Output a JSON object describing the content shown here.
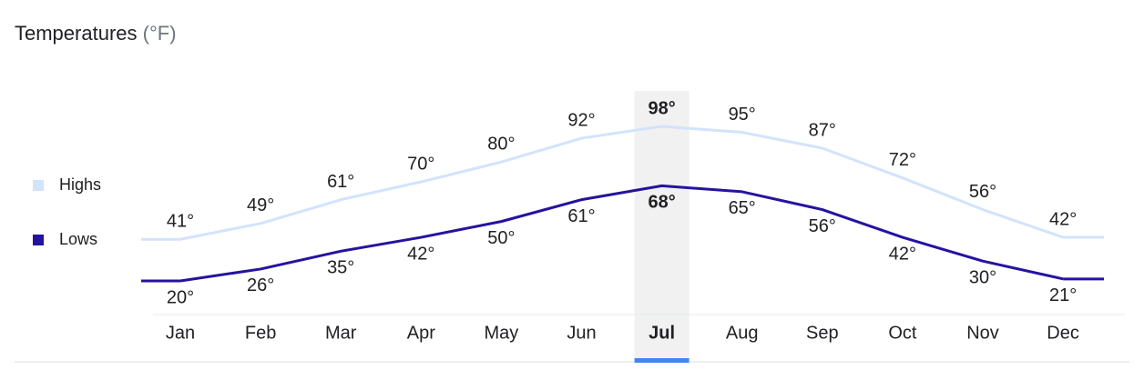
{
  "chart_data": {
    "type": "line",
    "title": "Temperatures",
    "unit": "(°F)",
    "categories": [
      "Jan",
      "Feb",
      "Mar",
      "Apr",
      "May",
      "Jun",
      "Jul",
      "Aug",
      "Sep",
      "Oct",
      "Nov",
      "Dec"
    ],
    "series": [
      {
        "name": "Highs",
        "color": "#d2e3fc",
        "values": [
          41,
          49,
          61,
          70,
          80,
          92,
          98,
          95,
          87,
          72,
          56,
          42
        ],
        "value_labels": [
          "41°",
          "49°",
          "61°",
          "70°",
          "80°",
          "92°",
          "98°",
          "95°",
          "87°",
          "72°",
          "56°",
          "42°"
        ]
      },
      {
        "name": "Lows",
        "color": "#2413a0",
        "values": [
          20,
          26,
          35,
          42,
          50,
          61,
          68,
          65,
          56,
          42,
          30,
          21
        ],
        "value_labels": [
          "20°",
          "26°",
          "35°",
          "42°",
          "50°",
          "61°",
          "68°",
          "65°",
          "56°",
          "42°",
          "30°",
          "21°"
        ]
      }
    ],
    "highlight": "Jul",
    "legend": "left"
  }
}
